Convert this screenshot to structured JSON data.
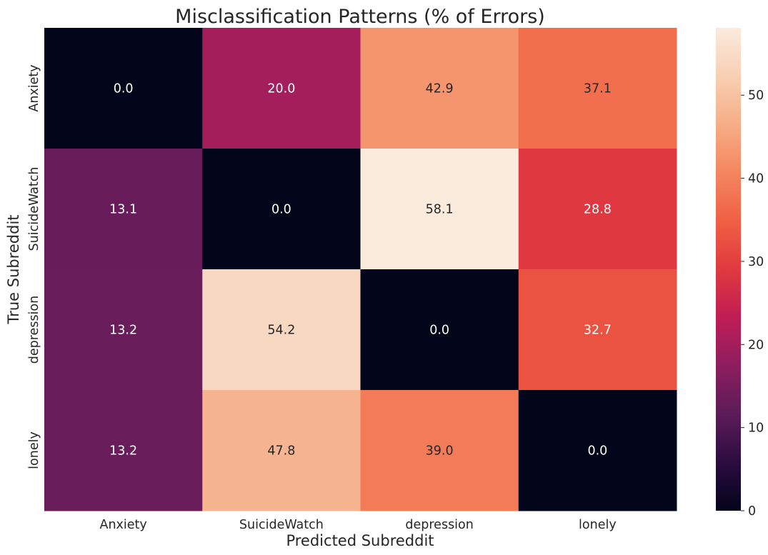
{
  "chart_data": {
    "type": "heatmap",
    "title": "Misclassification Patterns (% of Errors)",
    "xlabel": "Predicted Subreddit",
    "ylabel": "True Subreddit",
    "x_categories": [
      "Anxiety",
      "SuicideWatch",
      "depression",
      "lonely"
    ],
    "y_categories": [
      "Anxiety",
      "SuicideWatch",
      "depression",
      "lonely"
    ],
    "values": [
      [
        0.0,
        20.0,
        42.9,
        37.1
      ],
      [
        13.1,
        0.0,
        58.1,
        28.8
      ],
      [
        13.2,
        54.2,
        0.0,
        32.7
      ],
      [
        13.2,
        47.8,
        39.0,
        0.0
      ]
    ],
    "value_labels": [
      [
        "0.0",
        "20.0",
        "42.9",
        "37.1"
      ],
      [
        "13.1",
        "0.0",
        "58.1",
        "28.8"
      ],
      [
        "13.2",
        "54.2",
        "0.0",
        "32.7"
      ],
      [
        "13.2",
        "47.8",
        "39.0",
        "0.0"
      ]
    ],
    "colorbar": {
      "range": [
        0,
        58.1
      ],
      "ticks": [
        0,
        10,
        20,
        30,
        40,
        50
      ],
      "tick_labels": [
        "0",
        "10",
        "20",
        "30",
        "40",
        "50"
      ],
      "colormap": "rocket",
      "stops": [
        "#03051a",
        "#2b0c3f",
        "#5c1c58",
        "#8d1e5f",
        "#bf1d55",
        "#e0393f",
        "#f06043",
        "#f4865f",
        "#f6ad86",
        "#f8cfb4",
        "#faebdd"
      ]
    },
    "grid": false
  }
}
